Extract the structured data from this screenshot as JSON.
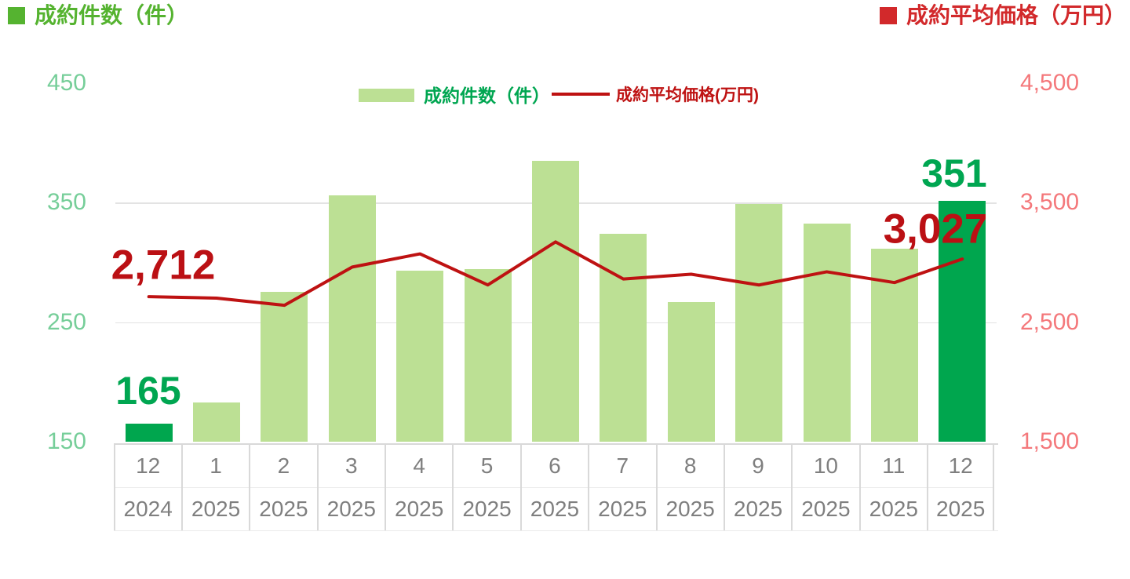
{
  "titles": {
    "left": "成約件数（件）",
    "right": "成約平均価格（万円）"
  },
  "legend": {
    "bar": "成約件数（件）",
    "line": "成約平均価格(万円)"
  },
  "annotations": {
    "first_line_value": "2,712",
    "first_bar_value": "165",
    "last_bar_value": "351",
    "last_line_value": "3,027"
  },
  "colors": {
    "title_green": "#55B330",
    "title_red": "#D2292B",
    "bar_light_green": "#BCE094",
    "bar_dark_green": "#00A64E",
    "line_red": "#BE1212",
    "left_tick_green": "#76CE99",
    "right_tick_red": "#F4787B",
    "axis_text_gray": "#7F7F7F",
    "gridline_gray": "#E3E3E3",
    "data_label_green": "#00A651",
    "data_label_red": "#BB1014"
  },
  "chart_data": {
    "type": "bar+line",
    "title": "",
    "categories": [
      {
        "month": "12",
        "year": "2024"
      },
      {
        "month": "1",
        "year": "2025"
      },
      {
        "month": "2",
        "year": "2025"
      },
      {
        "month": "3",
        "year": "2025"
      },
      {
        "month": "4",
        "year": "2025"
      },
      {
        "month": "5",
        "year": "2025"
      },
      {
        "month": "6",
        "year": "2025"
      },
      {
        "month": "7",
        "year": "2025"
      },
      {
        "month": "8",
        "year": "2025"
      },
      {
        "month": "9",
        "year": "2025"
      },
      {
        "month": "10",
        "year": "2025"
      },
      {
        "month": "11",
        "year": "2025"
      },
      {
        "month": "12",
        "year": "2025"
      }
    ],
    "series": [
      {
        "name": "成約件数（件）",
        "type": "bar",
        "axis": "left",
        "values": [
          165,
          183,
          275,
          356,
          293,
          294,
          385,
          324,
          267,
          349,
          332,
          311,
          351
        ],
        "emphasized_indices": [
          0,
          12
        ],
        "labeled_points": {
          "first": 165,
          "last": 351
        }
      },
      {
        "name": "成約平均価格(万円)",
        "type": "line",
        "axis": "right",
        "values": [
          2712,
          2700,
          2640,
          2960,
          3070,
          2810,
          3170,
          2860,
          2900,
          2810,
          2920,
          2830,
          3027
        ],
        "labeled_points": {
          "first": 2712,
          "last": 3027
        }
      }
    ],
    "left_axis": {
      "min": 150,
      "max": 450,
      "tick_values": [
        450,
        350,
        250,
        150
      ],
      "tick_labels": [
        "450",
        "350",
        "250",
        "150"
      ]
    },
    "right_axis": {
      "min": 1500,
      "max": 4500,
      "tick_values": [
        4500,
        3500,
        2500,
        1500
      ],
      "tick_labels": [
        "4,500",
        "3,500",
        "2,500",
        "1,500"
      ]
    },
    "gridlines_at_left_values": [
      350,
      250
    ],
    "legend_position": "top-center",
    "grid": "horizontal-only"
  }
}
